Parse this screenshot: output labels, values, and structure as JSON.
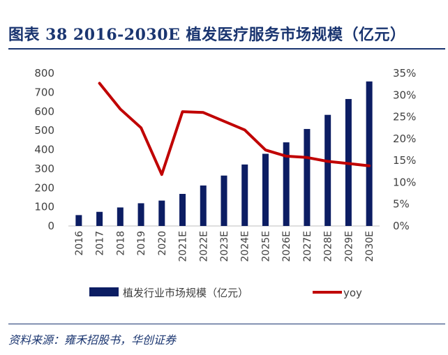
{
  "header": {
    "title": "图表 38  2016-2030E 植发医疗服务市场规模（亿元）"
  },
  "footer": {
    "source": "资料来源：雍禾招股书，华创证券"
  },
  "colors": {
    "title": "#1a3570",
    "bar": "#0c1d63",
    "line": "#c00000",
    "axis_text": "#404040"
  },
  "chart_data": {
    "type": "bar",
    "categories": [
      "2016",
      "2017",
      "2018",
      "2019",
      "2020",
      "2021E",
      "2022E",
      "2023E",
      "2024E",
      "2025E",
      "2026E",
      "2027E",
      "2028E",
      "2029E",
      "2030E"
    ],
    "series": [
      {
        "name": "植发行业市场规模（亿元）",
        "type": "bar",
        "axis": "left",
        "values": [
          57,
          74,
          97,
          119,
          133,
          168,
          212,
          264,
          322,
          378,
          438,
          508,
          582,
          665,
          757
        ]
      },
      {
        "name": "yoy",
        "type": "line",
        "axis": "right",
        "values": [
          null,
          0.327,
          0.268,
          0.225,
          0.118,
          0.262,
          0.26,
          0.24,
          0.22,
          0.174,
          0.16,
          0.157,
          0.148,
          0.143,
          0.138
        ]
      }
    ],
    "ylim_left": [
      0,
      800
    ],
    "yticks_left": [
      "0",
      "100",
      "200",
      "300",
      "400",
      "500",
      "600",
      "700",
      "800"
    ],
    "ylim_right": [
      0,
      0.35
    ],
    "yticks_right": [
      "0%",
      "5%",
      "10%",
      "15%",
      "20%",
      "25%",
      "30%",
      "35%"
    ],
    "legend_position": "bottom",
    "grid": false
  }
}
